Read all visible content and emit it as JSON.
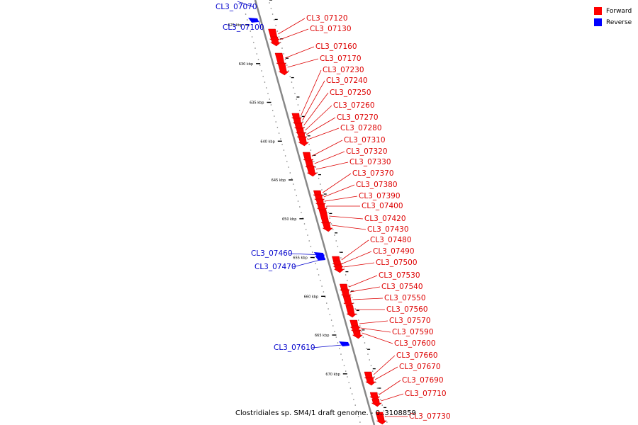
{
  "legend": {
    "forward_label": "Forward",
    "reverse_label": "Reverse",
    "forward_color": "#ff0000",
    "reverse_color": "#0000ff"
  },
  "caption": "Clostridiales sp. SM4/1 draft genome. - 0..3108859",
  "colors": {
    "backbone": "#888888",
    "forward_label": "#dd0000",
    "reverse_label": "#0000cc",
    "forward_gene": "#ff0000",
    "reverse_gene": "#0000ff"
  },
  "scale": {
    "unit": "kbp",
    "ticks": [
      {
        "label": "625 kbp",
        "kbp": 625
      },
      {
        "label": "630 kbp",
        "kbp": 630
      },
      {
        "label": "635 kbp",
        "kbp": 635
      },
      {
        "label": "640 kbp",
        "kbp": 640
      },
      {
        "label": "645 kbp",
        "kbp": 645
      },
      {
        "label": "650 kbp",
        "kbp": 650
      },
      {
        "label": "655 kbp",
        "kbp": 655
      },
      {
        "label": "660 kbp",
        "kbp": 660
      },
      {
        "label": "665 kbp",
        "kbp": 665
      },
      {
        "label": "670 kbp",
        "kbp": 670
      }
    ]
  },
  "genes": [
    {
      "id": "CL3_07070",
      "strand": "reverse"
    },
    {
      "id": "CL3_07100",
      "strand": "reverse"
    },
    {
      "id": "CL3_07120",
      "strand": "forward"
    },
    {
      "id": "CL3_07130",
      "strand": "forward"
    },
    {
      "id": "CL3_07160",
      "strand": "forward"
    },
    {
      "id": "CL3_07170",
      "strand": "forward"
    },
    {
      "id": "CL3_07230",
      "strand": "forward"
    },
    {
      "id": "CL3_07240",
      "strand": "forward"
    },
    {
      "id": "CL3_07250",
      "strand": "forward"
    },
    {
      "id": "CL3_07260",
      "strand": "forward"
    },
    {
      "id": "CL3_07270",
      "strand": "forward"
    },
    {
      "id": "CL3_07280",
      "strand": "forward"
    },
    {
      "id": "CL3_07310",
      "strand": "forward"
    },
    {
      "id": "CL3_07320",
      "strand": "forward"
    },
    {
      "id": "CL3_07330",
      "strand": "forward"
    },
    {
      "id": "CL3_07370",
      "strand": "forward"
    },
    {
      "id": "CL3_07380",
      "strand": "forward"
    },
    {
      "id": "CL3_07390",
      "strand": "forward"
    },
    {
      "id": "CL3_07400",
      "strand": "forward"
    },
    {
      "id": "CL3_07420",
      "strand": "forward"
    },
    {
      "id": "CL3_07430",
      "strand": "forward"
    },
    {
      "id": "CL3_07460",
      "strand": "reverse"
    },
    {
      "id": "CL3_07470",
      "strand": "reverse"
    },
    {
      "id": "CL3_07480",
      "strand": "forward"
    },
    {
      "id": "CL3_07490",
      "strand": "forward"
    },
    {
      "id": "CL3_07500",
      "strand": "forward"
    },
    {
      "id": "CL3_07530",
      "strand": "forward"
    },
    {
      "id": "CL3_07540",
      "strand": "forward"
    },
    {
      "id": "CL3_07550",
      "strand": "forward"
    },
    {
      "id": "CL3_07560",
      "strand": "forward"
    },
    {
      "id": "CL3_07570",
      "strand": "forward"
    },
    {
      "id": "CL3_07590",
      "strand": "forward"
    },
    {
      "id": "CL3_07600",
      "strand": "forward"
    },
    {
      "id": "CL3_07610",
      "strand": "reverse"
    },
    {
      "id": "CL3_07660",
      "strand": "forward"
    },
    {
      "id": "CL3_07670",
      "strand": "forward"
    },
    {
      "id": "CL3_07690",
      "strand": "forward"
    },
    {
      "id": "CL3_07710",
      "strand": "forward"
    },
    {
      "id": "CL3_07730",
      "strand": "forward"
    }
  ]
}
